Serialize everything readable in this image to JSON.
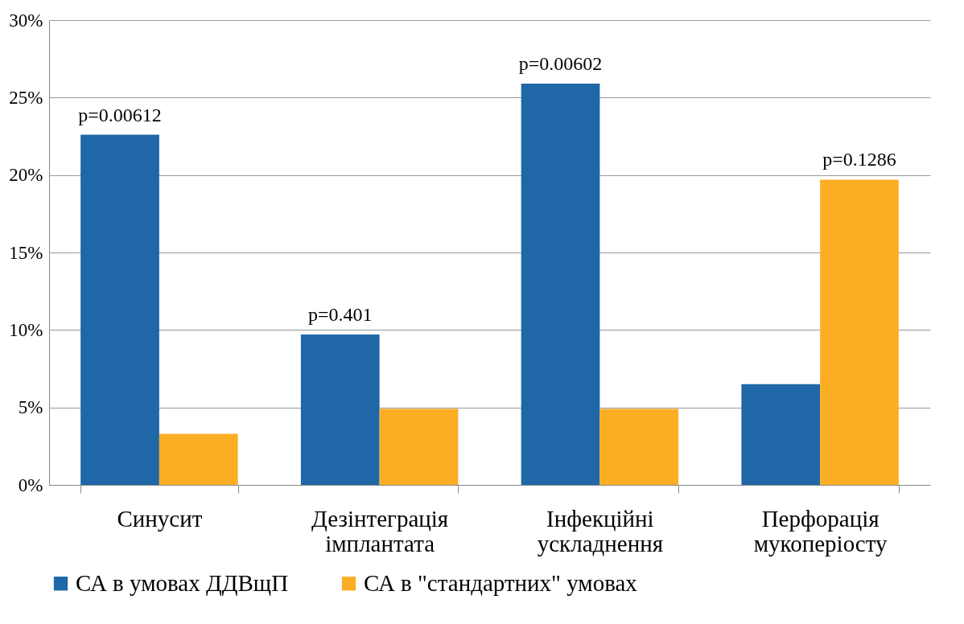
{
  "chart_data": {
    "type": "bar",
    "categories": [
      "Синусит",
      "Дезінтеграція імплантата",
      "Інфекційні ускладнення",
      "Перфорація мукоперіосту"
    ],
    "series": [
      {
        "name": "СА в умовах ДДВщП",
        "color": "#1f67a6",
        "values": [
          22.6,
          9.7,
          25.9,
          6.5
        ]
      },
      {
        "name": "СА в \"стандартних\" умовах",
        "color": "#fbae24",
        "values": [
          3.3,
          4.9,
          4.9,
          19.7
        ]
      }
    ],
    "ylim": [
      0,
      30
    ],
    "yticks": [
      {
        "value": 0,
        "label": "0%"
      },
      {
        "value": 5,
        "label": "5%"
      },
      {
        "value": 10,
        "label": "10%"
      },
      {
        "value": 15,
        "label": "15%"
      },
      {
        "value": 20,
        "label": "20%"
      },
      {
        "value": 25,
        "label": "25%"
      },
      {
        "value": 30,
        "label": "30%"
      }
    ],
    "grid": "y",
    "legend": "bottom",
    "annotations": [
      {
        "text": "p=0.00612",
        "x": "Синусит",
        "y": 22.6
      },
      {
        "text": "p=0.401",
        "x": "Дезінтеграція імплантата",
        "y": 9.7
      },
      {
        "text": "p=0.00602",
        "x": "Інфекційні ускладнення",
        "y": 25.9
      },
      {
        "text": "p=0.1286",
        "x": "Перфорація мукоперіосту",
        "y": 19.7
      }
    ]
  }
}
